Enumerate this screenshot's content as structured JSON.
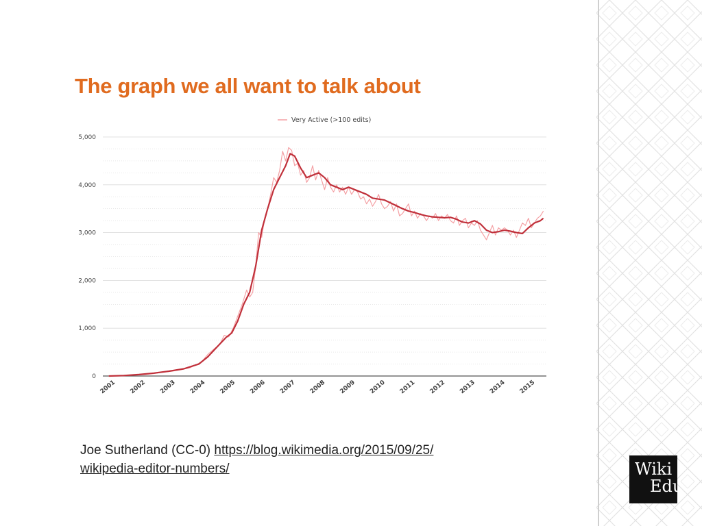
{
  "slide": {
    "title": "The graph we all want to talk about",
    "caption_prefix": "Joe Sutherland (CC-0) ",
    "caption_link_line1": "https://blog.wikimedia.org/2015/09/25/",
    "caption_link_line2": "wikipedia-editor-numbers/"
  },
  "logo": {
    "line1": "Wiki",
    "line2": "Edu"
  },
  "colors": {
    "title": "#e06b1f",
    "raw_series": "#f4a0a4",
    "smooth_series": "#c0303a",
    "grid": "#d9d9d9"
  },
  "icons": [
    "diamond-lattice-pattern"
  ],
  "chart_data": {
    "type": "line",
    "title": "",
    "xlabel": "",
    "ylabel": "",
    "xlim": [
      2000.8,
      2015.6
    ],
    "ylim": [
      0,
      5000
    ],
    "y_ticks": [
      0,
      1000,
      2000,
      3000,
      4000,
      5000
    ],
    "y_tick_labels": [
      "0",
      "1,000",
      "2,000",
      "3,000",
      "4,000",
      "5,000"
    ],
    "x_tick_labels": [
      "2001",
      "2002",
      "2003",
      "2004",
      "2005",
      "2006",
      "2007",
      "2008",
      "2009",
      "2010",
      "2011",
      "2012",
      "2013",
      "2014",
      "2015"
    ],
    "x_ticks": [
      2001,
      2002,
      2003,
      2004,
      2005,
      2006,
      2007,
      2008,
      2009,
      2010,
      2011,
      2012,
      2013,
      2014,
      2015
    ],
    "grid": true,
    "legend_position": "top-center",
    "series": [
      {
        "name": "Very Active (>100 edits)",
        "style": "raw",
        "x": [
          2001.0,
          2001.3,
          2001.6,
          2001.9,
          2002.2,
          2002.5,
          2002.8,
          2003.1,
          2003.4,
          2003.7,
          2003.9,
          2004.1,
          2004.3,
          2004.5,
          2004.7,
          2004.85,
          2005.0,
          2005.15,
          2005.3,
          2005.45,
          2005.6,
          2005.7,
          2005.8,
          2005.9,
          2006.0,
          2006.1,
          2006.2,
          2006.3,
          2006.4,
          2006.5,
          2006.6,
          2006.7,
          2006.8,
          2006.9,
          2007.0,
          2007.1,
          2007.2,
          2007.3,
          2007.4,
          2007.5,
          2007.6,
          2007.7,
          2007.8,
          2007.9,
          2008.0,
          2008.1,
          2008.2,
          2008.3,
          2008.4,
          2008.5,
          2008.6,
          2008.7,
          2008.8,
          2008.9,
          2009.0,
          2009.1,
          2009.2,
          2009.3,
          2009.4,
          2009.5,
          2009.6,
          2009.7,
          2009.8,
          2009.9,
          2010.0,
          2010.1,
          2010.2,
          2010.3,
          2010.4,
          2010.5,
          2010.6,
          2010.7,
          2010.8,
          2010.9,
          2011.0,
          2011.1,
          2011.2,
          2011.3,
          2011.4,
          2011.5,
          2011.6,
          2011.7,
          2011.8,
          2011.9,
          2012.0,
          2012.1,
          2012.2,
          2012.3,
          2012.4,
          2012.5,
          2012.6,
          2012.7,
          2012.8,
          2012.9,
          2013.0,
          2013.1,
          2013.2,
          2013.3,
          2013.4,
          2013.5,
          2013.6,
          2013.7,
          2013.8,
          2013.9,
          2014.0,
          2014.1,
          2014.2,
          2014.3,
          2014.4,
          2014.5,
          2014.6,
          2014.7,
          2014.8,
          2014.9,
          2015.0,
          2015.1,
          2015.2,
          2015.3,
          2015.4,
          2015.5
        ],
        "y": [
          0,
          0,
          10,
          20,
          30,
          50,
          80,
          100,
          130,
          170,
          230,
          300,
          450,
          560,
          660,
          850,
          820,
          1000,
          1250,
          1500,
          1800,
          1650,
          1750,
          2300,
          3000,
          2900,
          3300,
          3500,
          3800,
          4150,
          4050,
          4300,
          4700,
          4500,
          4780,
          4720,
          4400,
          4450,
          4200,
          4300,
          4050,
          4150,
          4400,
          4100,
          4300,
          4100,
          3900,
          4150,
          3950,
          3850,
          4000,
          3850,
          3950,
          3800,
          3950,
          3800,
          3900,
          3850,
          3700,
          3750,
          3600,
          3700,
          3550,
          3650,
          3800,
          3600,
          3500,
          3550,
          3650,
          3450,
          3600,
          3350,
          3400,
          3500,
          3600,
          3350,
          3450,
          3300,
          3400,
          3350,
          3250,
          3350,
          3300,
          3400,
          3250,
          3350,
          3300,
          3380,
          3250,
          3200,
          3350,
          3150,
          3250,
          3300,
          3100,
          3200,
          3150,
          3250,
          3050,
          2950,
          2850,
          3000,
          3150,
          2950,
          3100,
          3050,
          3100,
          3050,
          2950,
          3050,
          2900,
          3050,
          3200,
          3150,
          3300,
          3100,
          3200,
          3300,
          3350,
          3450
        ]
      },
      {
        "name": "",
        "style": "smoothed",
        "x": [
          2001.0,
          2001.5,
          2002.0,
          2002.5,
          2003.0,
          2003.5,
          2004.0,
          2004.3,
          2004.6,
          2004.9,
          2005.1,
          2005.3,
          2005.5,
          2005.7,
          2005.9,
          2006.1,
          2006.3,
          2006.5,
          2006.7,
          2006.9,
          2007.05,
          2007.2,
          2007.4,
          2007.6,
          2007.8,
          2008.0,
          2008.2,
          2008.4,
          2008.6,
          2008.8,
          2009.0,
          2009.2,
          2009.4,
          2009.6,
          2009.8,
          2010.0,
          2010.2,
          2010.4,
          2010.6,
          2010.8,
          2011.0,
          2011.2,
          2011.4,
          2011.6,
          2011.8,
          2012.0,
          2012.2,
          2012.4,
          2012.6,
          2012.8,
          2013.0,
          2013.2,
          2013.4,
          2013.6,
          2013.8,
          2014.0,
          2014.2,
          2014.4,
          2014.6,
          2014.8,
          2015.0,
          2015.2,
          2015.4,
          2015.5
        ],
        "y": [
          0,
          10,
          30,
          60,
          100,
          150,
          250,
          400,
          600,
          800,
          900,
          1150,
          1500,
          1750,
          2300,
          3050,
          3500,
          3900,
          4150,
          4400,
          4650,
          4600,
          4350,
          4150,
          4200,
          4250,
          4150,
          4000,
          3950,
          3900,
          3950,
          3900,
          3850,
          3800,
          3720,
          3700,
          3680,
          3620,
          3560,
          3500,
          3450,
          3420,
          3380,
          3350,
          3330,
          3320,
          3310,
          3320,
          3280,
          3220,
          3200,
          3250,
          3180,
          3050,
          3000,
          3020,
          3050,
          3030,
          3000,
          2980,
          3100,
          3200,
          3250,
          3300
        ]
      }
    ]
  }
}
